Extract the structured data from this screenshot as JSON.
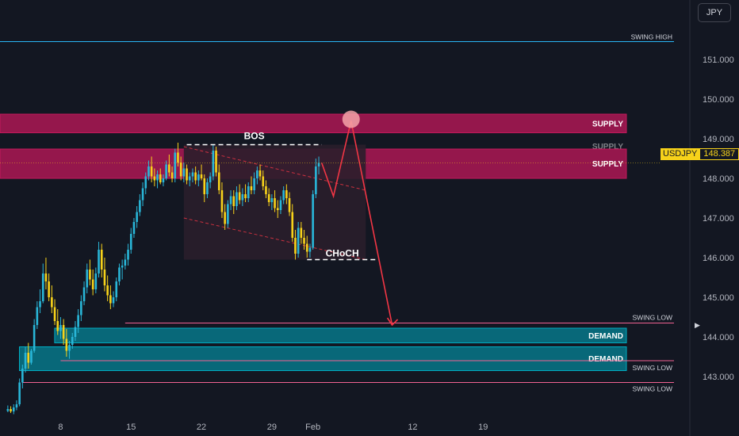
{
  "currency_button": {
    "label": "JPY"
  },
  "price_tag": {
    "symbol": "USDJPY",
    "price": "148.387"
  },
  "chart_data": {
    "type": "candlestick",
    "symbol": "USDJPY",
    "currency": "JPY",
    "ylim": [
      142.1,
      151.8
    ],
    "y_ticks": [
      {
        "value": 151.0,
        "label": "151.000"
      },
      {
        "value": 150.0,
        "label": "150.000"
      },
      {
        "value": 149.0,
        "label": "149.000"
      },
      {
        "value": 148.0,
        "label": "148.000"
      },
      {
        "value": 147.0,
        "label": "147.000"
      },
      {
        "value": 146.0,
        "label": "146.000"
      },
      {
        "value": 145.0,
        "label": "145.000"
      },
      {
        "value": 144.0,
        "label": "144.000"
      },
      {
        "value": 143.0,
        "label": "143.000"
      }
    ],
    "x_ticks": [
      {
        "index": 18,
        "label": "8"
      },
      {
        "index": 42,
        "label": "15"
      },
      {
        "index": 66,
        "label": "22"
      },
      {
        "index": 90,
        "label": "29"
      },
      {
        "index": 104,
        "label": "Feb"
      },
      {
        "index": 138,
        "label": "12"
      },
      {
        "index": 162,
        "label": "19"
      }
    ],
    "colors": {
      "up": "#26a69a",
      "up_fill": "#29b6d8",
      "down": "#f7d21a",
      "supply": "#c2185b",
      "demand": "#00acc1",
      "projection": "#f23645",
      "swing_high": "#29b6f6",
      "swing_low": "#f06292"
    },
    "ohlc": [
      [
        142.13,
        142.27,
        142.1,
        142.18
      ],
      [
        142.18,
        142.25,
        142.08,
        142.12
      ],
      [
        142.12,
        142.3,
        142.05,
        142.22
      ],
      [
        142.22,
        142.4,
        142.15,
        142.3
      ],
      [
        142.3,
        142.95,
        142.25,
        142.85
      ],
      [
        142.85,
        143.3,
        142.7,
        143.2
      ],
      [
        143.2,
        143.75,
        143.1,
        143.6
      ],
      [
        143.6,
        143.85,
        143.2,
        143.35
      ],
      [
        143.35,
        143.7,
        143.3,
        143.65
      ],
      [
        143.65,
        144.45,
        143.6,
        144.3
      ],
      [
        144.3,
        144.9,
        144.2,
        144.75
      ],
      [
        144.75,
        145.2,
        144.6,
        144.9
      ],
      [
        144.9,
        145.85,
        144.85,
        145.6
      ],
      [
        145.6,
        146.0,
        145.2,
        145.4
      ],
      [
        145.4,
        145.6,
        144.9,
        145.0
      ],
      [
        145.0,
        145.3,
        144.6,
        144.75
      ],
      [
        144.75,
        144.95,
        144.3,
        144.4
      ],
      [
        144.4,
        144.7,
        144.05,
        144.15
      ],
      [
        144.15,
        144.5,
        143.95,
        144.3
      ],
      [
        144.3,
        144.45,
        143.8,
        143.95
      ],
      [
        143.95,
        144.2,
        143.5,
        143.65
      ],
      [
        143.65,
        143.9,
        143.45,
        143.8
      ],
      [
        143.8,
        144.1,
        143.7,
        144.0
      ],
      [
        144.0,
        144.4,
        143.9,
        144.25
      ],
      [
        144.25,
        144.7,
        144.1,
        144.55
      ],
      [
        144.55,
        145.05,
        144.4,
        144.9
      ],
      [
        144.9,
        145.4,
        144.8,
        145.25
      ],
      [
        145.25,
        145.85,
        145.1,
        145.7
      ],
      [
        145.7,
        145.95,
        145.3,
        145.45
      ],
      [
        145.45,
        145.7,
        145.05,
        145.2
      ],
      [
        145.2,
        145.75,
        145.1,
        145.6
      ],
      [
        145.6,
        146.4,
        145.5,
        146.2
      ],
      [
        146.2,
        146.35,
        145.5,
        145.7
      ],
      [
        145.7,
        146.0,
        145.15,
        145.3
      ],
      [
        145.3,
        145.55,
        144.9,
        145.05
      ],
      [
        145.05,
        145.3,
        144.7,
        144.85
      ],
      [
        144.85,
        145.15,
        144.75,
        145.0
      ],
      [
        145.0,
        145.5,
        144.9,
        145.4
      ],
      [
        145.4,
        145.85,
        145.3,
        145.75
      ],
      [
        145.75,
        145.95,
        145.45,
        145.8
      ],
      [
        145.8,
        146.1,
        145.7,
        145.95
      ],
      [
        145.95,
        146.35,
        145.8,
        146.2
      ],
      [
        146.2,
        146.75,
        146.1,
        146.6
      ],
      [
        146.6,
        147.0,
        146.5,
        146.9
      ],
      [
        146.9,
        147.3,
        146.75,
        147.15
      ],
      [
        147.15,
        147.6,
        147.05,
        147.45
      ],
      [
        147.45,
        147.9,
        147.3,
        147.75
      ],
      [
        147.75,
        148.15,
        147.6,
        148.05
      ],
      [
        148.05,
        148.45,
        147.95,
        148.3
      ],
      [
        148.3,
        148.55,
        147.9,
        148.05
      ],
      [
        148.05,
        148.25,
        147.8,
        147.95
      ],
      [
        147.95,
        148.2,
        147.75,
        148.1
      ],
      [
        148.1,
        148.25,
        147.85,
        147.9
      ],
      [
        147.9,
        148.1,
        147.8,
        148.0
      ],
      [
        148.0,
        148.45,
        147.95,
        148.35
      ],
      [
        148.35,
        148.6,
        148.05,
        148.15
      ],
      [
        148.15,
        148.3,
        147.9,
        148.0
      ],
      [
        148.0,
        148.75,
        147.9,
        148.65
      ],
      [
        148.65,
        148.9,
        148.3,
        148.4
      ],
      [
        148.4,
        148.55,
        147.95,
        148.05
      ],
      [
        148.05,
        148.4,
        147.9,
        148.25
      ],
      [
        148.25,
        148.35,
        147.85,
        147.95
      ],
      [
        147.95,
        148.15,
        147.8,
        148.05
      ],
      [
        148.05,
        148.25,
        147.9,
        148.15
      ],
      [
        148.15,
        148.3,
        147.85,
        147.95
      ],
      [
        147.95,
        148.2,
        147.8,
        148.1
      ],
      [
        148.1,
        148.35,
        147.95,
        148.0
      ],
      [
        148.0,
        148.1,
        147.4,
        147.6
      ],
      [
        147.6,
        148.0,
        147.5,
        147.9
      ],
      [
        147.9,
        148.15,
        147.75,
        148.05
      ],
      [
        148.05,
        148.85,
        147.95,
        148.7
      ],
      [
        148.7,
        148.8,
        148.05,
        148.15
      ],
      [
        148.15,
        148.35,
        147.6,
        147.7
      ],
      [
        147.7,
        147.9,
        147.0,
        147.15
      ],
      [
        147.15,
        147.35,
        146.7,
        146.85
      ],
      [
        146.85,
        147.45,
        146.75,
        147.35
      ],
      [
        147.35,
        147.7,
        147.2,
        147.55
      ],
      [
        147.55,
        147.7,
        147.1,
        147.3
      ],
      [
        147.3,
        147.8,
        147.2,
        147.65
      ],
      [
        147.65,
        147.85,
        147.35,
        147.45
      ],
      [
        147.45,
        147.75,
        147.3,
        147.6
      ],
      [
        147.6,
        147.85,
        147.4,
        147.5
      ],
      [
        147.5,
        147.9,
        147.4,
        147.8
      ],
      [
        147.8,
        148.05,
        147.6,
        147.7
      ],
      [
        147.7,
        148.15,
        147.6,
        148.0
      ],
      [
        148.0,
        148.3,
        147.85,
        148.2
      ],
      [
        148.2,
        148.35,
        147.95,
        148.05
      ],
      [
        148.05,
        148.2,
        147.7,
        147.8
      ],
      [
        147.8,
        147.95,
        147.5,
        147.6
      ],
      [
        147.6,
        147.75,
        147.3,
        147.4
      ],
      [
        147.4,
        147.6,
        147.2,
        147.5
      ],
      [
        147.5,
        147.7,
        147.15,
        147.25
      ],
      [
        147.25,
        147.45,
        147.0,
        147.2
      ],
      [
        147.2,
        147.55,
        147.1,
        147.45
      ],
      [
        147.45,
        147.8,
        147.35,
        147.7
      ],
      [
        147.7,
        147.85,
        147.35,
        147.5
      ],
      [
        147.5,
        147.65,
        147.05,
        147.15
      ],
      [
        147.15,
        147.35,
        146.4,
        146.5
      ],
      [
        146.5,
        146.7,
        145.95,
        146.1
      ],
      [
        146.1,
        146.9,
        146.0,
        146.75
      ],
      [
        146.75,
        146.9,
        146.35,
        146.5
      ],
      [
        146.5,
        146.7,
        146.2,
        146.35
      ],
      [
        146.35,
        146.55,
        146.0,
        146.15
      ],
      [
        146.15,
        146.35,
        146.0,
        146.25
      ],
      [
        146.25,
        147.7,
        146.2,
        147.6
      ],
      [
        147.6,
        148.5,
        147.5,
        148.3
      ],
      [
        148.3,
        148.55,
        148.1,
        148.39
      ]
    ],
    "zones": [
      {
        "type": "supply",
        "label": "SUPPLY",
        "low": 149.15,
        "high": 149.62,
        "from": 0
      },
      {
        "type": "supply",
        "label": "SUPPLY",
        "low": 148.74,
        "high": 148.88,
        "from": 0,
        "label_only": true
      },
      {
        "type": "supply",
        "label": "SUPPLY",
        "low": 148.0,
        "high": 148.74,
        "from": 0
      },
      {
        "type": "demand",
        "label": "DEMAND",
        "low": 143.85,
        "high": 144.22,
        "from": 17
      },
      {
        "type": "demand",
        "label": "DEMAND",
        "low": 143.15,
        "high": 143.75,
        "from": 5
      }
    ],
    "levels": [
      {
        "label": "SWING HIGH",
        "value": 151.45,
        "from": 0,
        "color": "swing_high"
      },
      {
        "label": "SWING LOW",
        "value": 144.35,
        "from": 40,
        "color": "swing_low"
      },
      {
        "label": "SWING LOW",
        "value": 143.4,
        "from": 18,
        "color": "swing_low"
      },
      {
        "label": "SWING LOW",
        "value": 142.85,
        "from": 5,
        "color": "swing_low"
      }
    ],
    "annotations": [
      {
        "label": "BOS",
        "level": 148.85,
        "from": 61,
        "to": 107
      },
      {
        "label": "CHoCH",
        "level": 145.95,
        "from": 102,
        "to": 126
      }
    ],
    "channel": {
      "upper": [
        [
          60,
          148.8
        ],
        [
          122,
          147.7
        ]
      ],
      "lower": [
        [
          60,
          147.0
        ],
        [
          122,
          145.95
        ]
      ],
      "box_right": 122
    },
    "projection": [
      [
        107,
        148.39
      ],
      [
        111,
        147.55
      ],
      [
        117,
        149.45
      ],
      [
        131,
        144.3
      ]
    ]
  }
}
